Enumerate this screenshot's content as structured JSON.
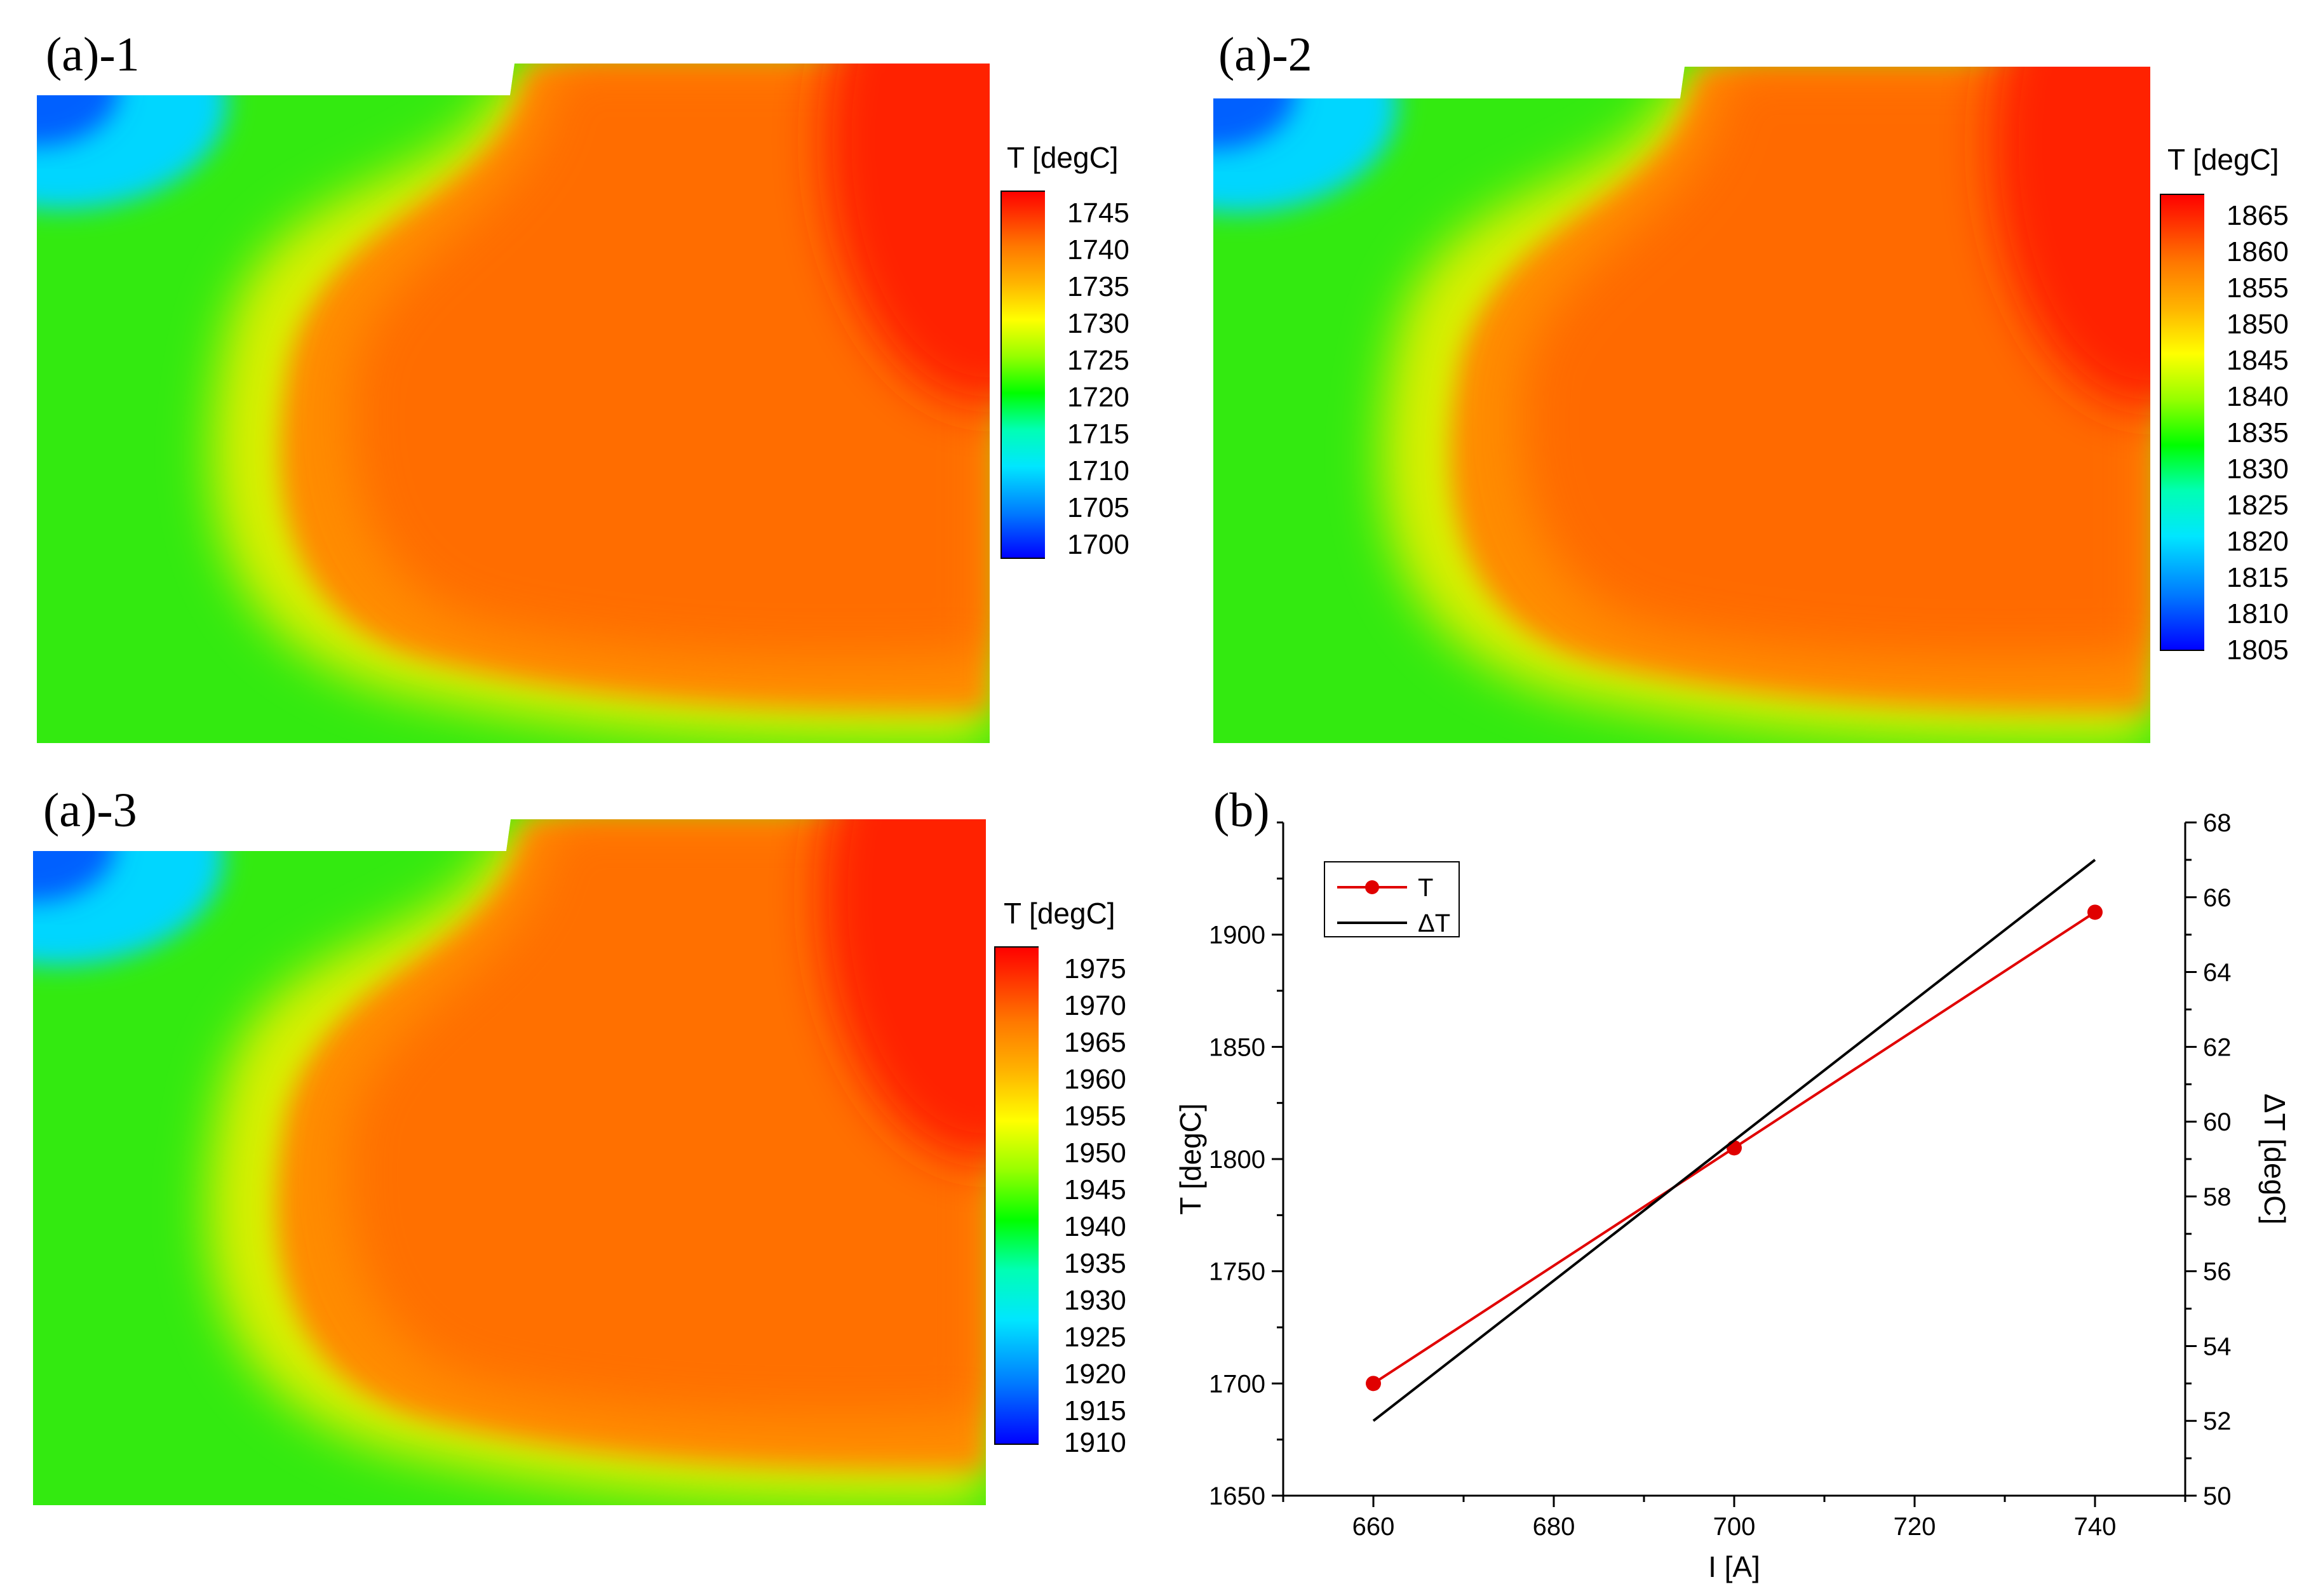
{
  "panels": {
    "a1": {
      "label": "(a)-1",
      "colorbar": {
        "title": "T [degC]",
        "ticks": [
          "1745",
          "1740",
          "1735",
          "1730",
          "1725",
          "1720",
          "1715",
          "1710",
          "1705",
          "1700"
        ]
      }
    },
    "a2": {
      "label": "(a)-2",
      "colorbar": {
        "title": "T [degC]",
        "ticks": [
          "1865",
          "1860",
          "1855",
          "1850",
          "1845",
          "1840",
          "1835",
          "1830",
          "1825",
          "1820",
          "1815",
          "1810",
          "1805"
        ]
      }
    },
    "a3": {
      "label": "(a)-3",
      "colorbar": {
        "title": "T [degC]",
        "ticks": [
          "1975",
          "1970",
          "1965",
          "1960",
          "1955",
          "1950",
          "1945",
          "1940",
          "1935",
          "1930",
          "1925",
          "1920",
          "1915",
          "1910"
        ]
      }
    },
    "b": {
      "label": "(b)"
    }
  },
  "colormap": [
    "#0000ff",
    "#0078ff",
    "#00e6ff",
    "#00ffb4",
    "#00ff00",
    "#96ff00",
    "#ffff00",
    "#ffb400",
    "#ff7800",
    "#ff5a00",
    "#ff0000"
  ],
  "chart_data": {
    "type": "line",
    "xlabel": "I [A]",
    "ylabel": "T [degC]",
    "y2label": "ΔT [degC]",
    "xlim": [
      650,
      750
    ],
    "ylim": [
      1650,
      1950
    ],
    "y2lim": [
      50,
      68
    ],
    "xticks": [
      660,
      680,
      700,
      720,
      740
    ],
    "yticks": [
      1650,
      1700,
      1750,
      1800,
      1850,
      1900
    ],
    "y2ticks": [
      50,
      52,
      54,
      56,
      58,
      60,
      62,
      64,
      66,
      68
    ],
    "series": [
      {
        "name": "T",
        "axis": "left",
        "color": "#e00000",
        "markers": true,
        "x": [
          660,
          700,
          740
        ],
        "y": [
          1700,
          1805,
          1910
        ]
      },
      {
        "name": "ΔT",
        "axis": "right",
        "color": "#000000",
        "markers": false,
        "x": [
          660,
          740
        ],
        "y": [
          52,
          67
        ]
      }
    ],
    "legend": {
      "position": "top-left",
      "entries": [
        "T",
        "ΔT"
      ]
    }
  }
}
